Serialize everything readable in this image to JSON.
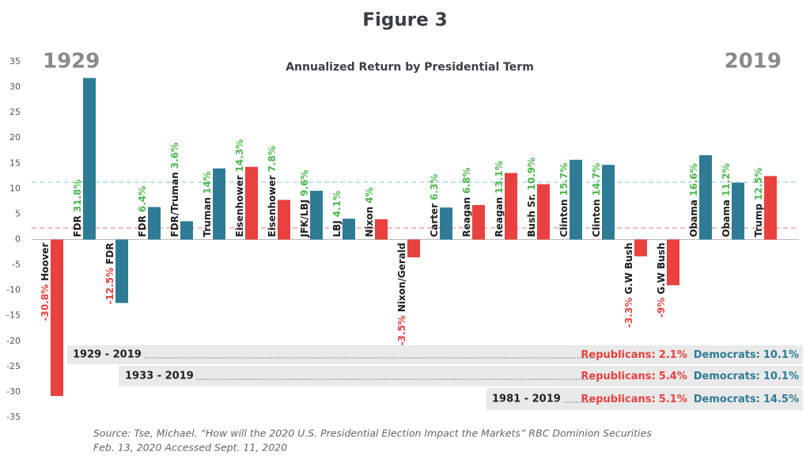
{
  "chart_data": {
    "type": "bar",
    "title": "Figure 3",
    "subtitle": "Annualized Return by Presidential Term",
    "start_label": "1929",
    "end_label": "2019",
    "categories": [
      "Hoover",
      "FDR",
      "FDR",
      "FDR",
      "FDR/Truman",
      "Truman",
      "Eisenhower",
      "Eisenhower",
      "JFK/LBJ",
      "LBJ",
      "Nixon",
      "Nixon/Gerald",
      "Carter",
      "Reagan",
      "Reagan",
      "Bush Sr.",
      "Clinton",
      "Clinton",
      "G.W Bush",
      "G.W Bush",
      "Obama",
      "Obama",
      "Trump"
    ],
    "values": [
      -30.8,
      31.8,
      -12.5,
      6.4,
      3.6,
      14,
      14.3,
      7.8,
      9.6,
      4.1,
      4,
      -3.5,
      6.3,
      6.8,
      13.1,
      10.9,
      15.7,
      14.7,
      -3.3,
      -9,
      16.6,
      11.2,
      12.5
    ],
    "value_labels": [
      "-30.8%",
      "31.8%",
      "-12.5%",
      "6.4%",
      "3.6%",
      "14%",
      "14.3%",
      "7.8%",
      "9.6%",
      "4.1%",
      "4%",
      "-3.5%",
      "6.3%",
      "6.8%",
      "13.1%",
      "10.9%",
      "15.7%",
      "14.7%",
      "-3.3%",
      "-9%",
      "16.6%",
      "11.2%",
      "12.5%"
    ],
    "colors": [
      "#e8413f",
      "#2e7b96",
      "#2e7b96",
      "#2e7b96",
      "#2e7b96",
      "#2e7b96",
      "#e8413f",
      "#e8413f",
      "#2e7b96",
      "#2e7b96",
      "#e8413f",
      "#e8413f",
      "#2e7b96",
      "#e8413f",
      "#e8413f",
      "#e8413f",
      "#2e7b96",
      "#2e7b96",
      "#e8413f",
      "#e8413f",
      "#2e7b96",
      "#2e7b96",
      "#e8413f"
    ],
    "positive_label_color": "#4cb84a",
    "negative_label_color": "#e8413f",
    "reference_lines": [
      {
        "value": 11.3,
        "color": "#bfe3f2"
      },
      {
        "value": 2.3,
        "color": "#f4b8bd"
      }
    ],
    "ylim": [
      -35,
      35
    ],
    "yticks": [
      -35,
      -30,
      -25,
      -20,
      -15,
      -10,
      -5,
      0,
      5,
      10,
      15,
      20,
      25,
      30,
      35
    ],
    "grid": false
  },
  "summary": {
    "rows": [
      {
        "period": "1929 - 2019",
        "republicans_label": "Republicans:",
        "republicans": "2.1%",
        "democrats_label": "Democrats:",
        "democrats": "10.1%"
      },
      {
        "period": "1933 - 2019",
        "republicans_label": "Republicans:",
        "republicans": "5.4%",
        "democrats_label": "Democrats:",
        "democrats": "10.1%"
      },
      {
        "period": "1981 - 2019",
        "republicans_label": "Republicans:",
        "republicans": "5.1%",
        "democrats_label": "Democrats:",
        "democrats": "14.5%"
      }
    ]
  },
  "source": [
    "Source: Tse, Michael. “How will the 2020 U.S. Presidential Election Impact the Markets” RBC Dominion Securities",
    "Feb. 13, 2020 Accessed Sept. 11, 2020"
  ]
}
